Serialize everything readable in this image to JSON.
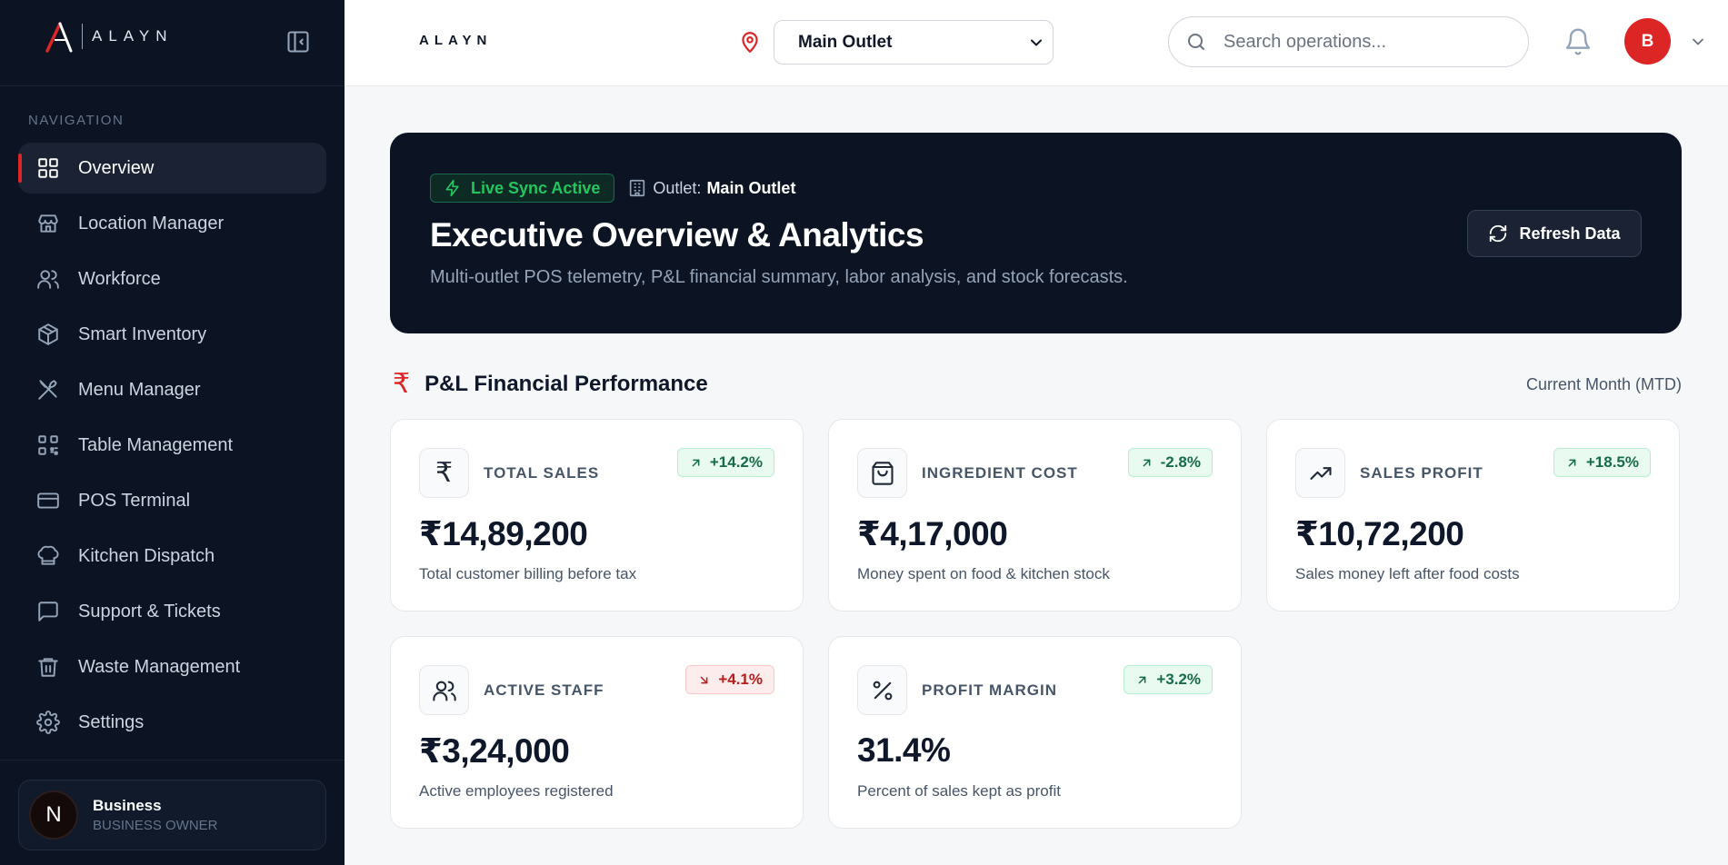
{
  "brand": {
    "name": "ALAYN"
  },
  "sidebar": {
    "nav_label": "NAVIGATION",
    "items": [
      {
        "label": "Overview",
        "icon": "grid-icon",
        "active": true
      },
      {
        "label": "Location Manager",
        "icon": "store-icon"
      },
      {
        "label": "Workforce",
        "icon": "users-icon"
      },
      {
        "label": "Smart Inventory",
        "icon": "package-icon"
      },
      {
        "label": "Menu Manager",
        "icon": "utensils-icon"
      },
      {
        "label": "Table Management",
        "icon": "qr-code-icon"
      },
      {
        "label": "POS Terminal",
        "icon": "credit-card-icon"
      },
      {
        "label": "Kitchen Dispatch",
        "icon": "chef-hat-icon"
      },
      {
        "label": "Support & Tickets",
        "icon": "message-square-icon"
      },
      {
        "label": "Waste Management",
        "icon": "trash-icon"
      },
      {
        "label": "Settings",
        "icon": "gear-icon"
      }
    ],
    "user": {
      "initial": "N",
      "name": "Business",
      "role": "BUSINESS OWNER"
    }
  },
  "header": {
    "logo": "ALAYN",
    "outlet_selected": "Main Outlet",
    "search_placeholder": "Search operations...",
    "avatar_initial": "B"
  },
  "hero": {
    "live_badge": "Live Sync Active",
    "outlet_label": "Outlet:",
    "outlet_name": "Main Outlet",
    "title": "Executive Overview & Analytics",
    "subtitle": "Multi-outlet POS telemetry, P&L financial summary, labor analysis, and stock forecasts.",
    "refresh_label": "Refresh Data"
  },
  "section": {
    "title": "P&L Financial Performance",
    "period": "Current Month (MTD)"
  },
  "cards": [
    {
      "label": "TOTAL SALES",
      "value": "₹14,89,200",
      "desc": "Total customer billing before tax",
      "delta": "+14.2%",
      "trend": "up",
      "icon": "rupee-icon"
    },
    {
      "label": "INGREDIENT COST",
      "value": "₹4,17,000",
      "desc": "Money spent on food & kitchen stock",
      "delta": "-2.8%",
      "trend": "up",
      "icon": "shopping-bag-icon"
    },
    {
      "label": "SALES PROFIT",
      "value": "₹10,72,200",
      "desc": "Sales money left after food costs",
      "delta": "+18.5%",
      "trend": "up",
      "icon": "trending-up-icon"
    },
    {
      "label": "ACTIVE STAFF",
      "value": "₹3,24,000",
      "desc": "Active employees registered",
      "delta": "+4.1%",
      "trend": "down",
      "icon": "users-icon"
    },
    {
      "label": "PROFIT MARGIN",
      "value": "31.4%",
      "desc": "Percent of sales kept as profit",
      "delta": "+3.2%",
      "trend": "up",
      "icon": "percent-icon"
    }
  ],
  "colors": {
    "accent": "#dc2626",
    "sidebar_bg": "#0c1322",
    "positive": "#166b4a",
    "negative": "#b91c1c"
  }
}
